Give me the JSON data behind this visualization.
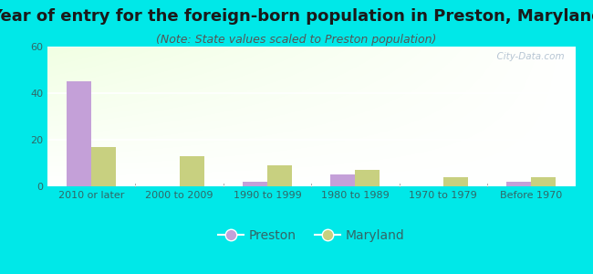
{
  "title": "Year of entry for the foreign-born population in Preston, Maryland",
  "subtitle": "(Note: State values scaled to Preston population)",
  "categories": [
    "2010 or later",
    "2000 to 2009",
    "1990 to 1999",
    "1980 to 1989",
    "1970 to 1979",
    "Before 1970"
  ],
  "preston_values": [
    45,
    0,
    2,
    5,
    0,
    2
  ],
  "maryland_values": [
    17,
    13,
    9,
    7,
    4,
    4
  ],
  "preston_color": "#c4a0d8",
  "maryland_color": "#c8d080",
  "background_outer": "#00e8e8",
  "ylim": [
    0,
    60
  ],
  "yticks": [
    0,
    20,
    40,
    60
  ],
  "title_fontsize": 13,
  "subtitle_fontsize": 9,
  "tick_fontsize": 8,
  "legend_fontsize": 10,
  "bar_width": 0.28,
  "watermark": "  City-Data.com"
}
